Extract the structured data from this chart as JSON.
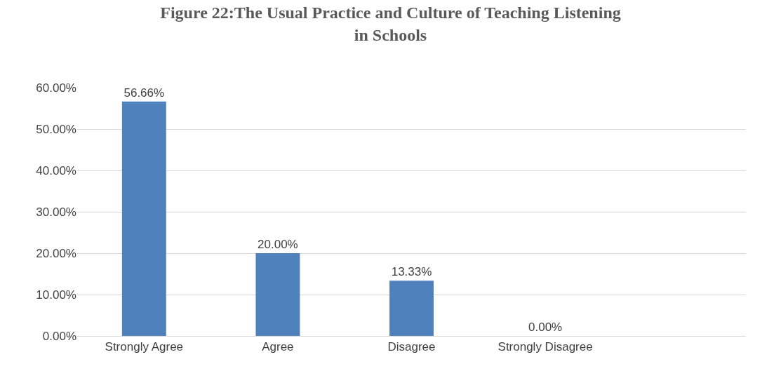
{
  "chart_data": {
    "type": "bar",
    "title": "Figure 22:The Usual Practice and Culture of Teaching Listening\nin Schools",
    "categories": [
      "Strongly Agree",
      "Agree",
      "Disagree",
      "Strongly Disagree",
      null
    ],
    "values": [
      56.66,
      20.0,
      13.33,
      0.0,
      null
    ],
    "value_labels": [
      "56.66%",
      "20.00%",
      "13.33%",
      "0.00%",
      null
    ],
    "color": "#4f81bd",
    "ylim": [
      0,
      60
    ],
    "yticks": [
      {
        "value": 0,
        "label": "0.00%"
      },
      {
        "value": 10,
        "label": "10.00%"
      },
      {
        "value": 20,
        "label": "20.00%"
      },
      {
        "value": 30,
        "label": "30.00%"
      },
      {
        "value": 40,
        "label": "40.00%"
      },
      {
        "value": 50,
        "label": "50.00%"
      },
      {
        "value": 60,
        "label": "60.00%"
      }
    ],
    "grid": "y"
  }
}
